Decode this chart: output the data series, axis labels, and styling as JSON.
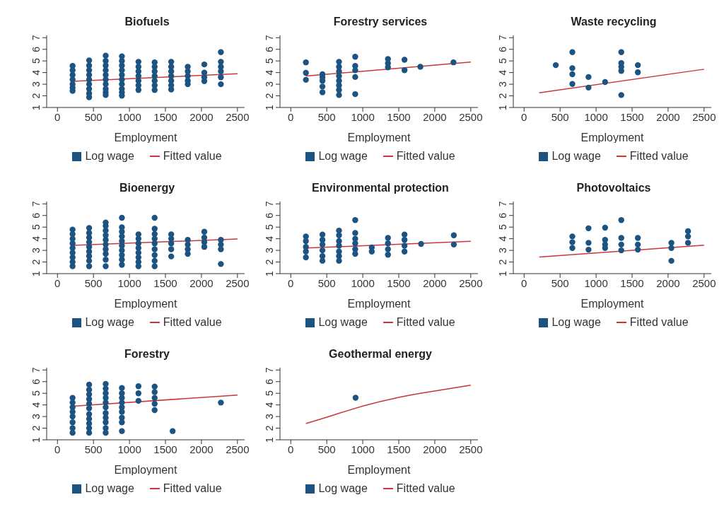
{
  "chart_data": [
    {
      "type": "scatter",
      "title": "Biofuels",
      "xlabel": "Employment",
      "xlim": [
        -150,
        2600
      ],
      "xticks": [
        0,
        500,
        1000,
        1500,
        2000,
        2500
      ],
      "ylim": [
        1,
        7.2
      ],
      "yticks": [
        1,
        2,
        3,
        4,
        5,
        6,
        7
      ],
      "legend": "bottom",
      "series": [
        {
          "name": "Log wage",
          "marker": "circle",
          "color": "#1d5380",
          "x": [
            210,
            210,
            210,
            210,
            210,
            210,
            210,
            440,
            440,
            440,
            440,
            440,
            440,
            440,
            440,
            440,
            670,
            670,
            670,
            670,
            670,
            670,
            670,
            670,
            670,
            670,
            895,
            895,
            895,
            895,
            895,
            895,
            895,
            895,
            895,
            895,
            1125,
            1125,
            1125,
            1125,
            1125,
            1125,
            1125,
            1350,
            1350,
            1350,
            1350,
            1350,
            1350,
            1350,
            1580,
            1580,
            1580,
            1580,
            1580,
            1580,
            1580,
            1810,
            1810,
            1810,
            1810,
            1810,
            2040,
            2040,
            2040,
            2040,
            2270,
            2270,
            2270,
            2270,
            2270,
            2270
          ],
          "values": [
            4.57,
            4.2,
            3.8,
            3.4,
            3.0,
            2.7,
            2.43,
            5.05,
            4.6,
            4.2,
            3.8,
            3.4,
            3.0,
            2.6,
            2.2,
            1.88,
            5.45,
            5.0,
            4.6,
            4.2,
            3.8,
            3.4,
            3.0,
            2.6,
            2.3,
            2.07,
            5.4,
            5.0,
            4.6,
            4.2,
            3.8,
            3.4,
            3.0,
            2.6,
            2.3,
            2.02,
            4.93,
            4.5,
            4.1,
            3.7,
            3.3,
            2.9,
            2.5,
            4.88,
            4.5,
            4.1,
            3.7,
            3.3,
            2.9,
            2.5,
            4.93,
            4.5,
            4.1,
            3.7,
            3.3,
            2.9,
            2.55,
            4.5,
            4.1,
            3.7,
            3.3,
            3.0,
            4.7,
            4.0,
            3.6,
            3.26,
            5.76,
            4.93,
            4.5,
            4.1,
            3.6,
            3.0
          ]
        },
        {
          "name": "Fitted value",
          "type": "line",
          "marker": "none",
          "color": "#c9373a",
          "x": [
            210,
            2500
          ],
          "values": [
            3.25,
            3.9
          ]
        }
      ]
    },
    {
      "type": "scatter",
      "title": "Forestry services",
      "xlabel": "Employment",
      "xlim": [
        -150,
        2600
      ],
      "xticks": [
        0,
        500,
        1000,
        1500,
        2000,
        2500
      ],
      "ylim": [
        1,
        7.2
      ],
      "yticks": [
        1,
        2,
        3,
        4,
        5,
        6,
        7
      ],
      "legend": "bottom",
      "series": [
        {
          "name": "Log wage",
          "marker": "circle",
          "color": "#1d5380",
          "x": [
            210,
            210,
            210,
            440,
            440,
            440,
            440,
            440,
            670,
            670,
            670,
            670,
            670,
            670,
            670,
            670,
            895,
            895,
            895,
            895,
            895,
            1350,
            1350,
            1350,
            1580,
            1580,
            1800,
            2260
          ],
          "values": [
            4.88,
            3.98,
            3.38,
            3.86,
            3.6,
            3.3,
            2.8,
            2.31,
            4.93,
            4.5,
            4.1,
            3.7,
            3.3,
            2.9,
            2.5,
            2.07,
            5.36,
            4.57,
            4.2,
            3.62,
            2.15,
            5.17,
            4.8,
            4.45,
            5.1,
            4.21,
            4.5,
            4.88
          ]
        },
        {
          "name": "Fitted value",
          "type": "line",
          "marker": "none",
          "color": "#c9373a",
          "x": [
            210,
            2500
          ],
          "values": [
            3.7,
            4.9
          ]
        }
      ]
    },
    {
      "type": "scatter",
      "title": "Waste recycling",
      "xlabel": "Employment",
      "xlim": [
        -150,
        2600
      ],
      "xticks": [
        0,
        500,
        1000,
        1500,
        2000,
        2500
      ],
      "ylim": [
        1,
        7.2
      ],
      "yticks": [
        1,
        2,
        3,
        4,
        5,
        6,
        7
      ],
      "legend": "bottom",
      "series": [
        {
          "name": "Log wage",
          "marker": "circle",
          "color": "#1d5380",
          "x": [
            440,
            670,
            670,
            670,
            670,
            895,
            895,
            1125,
            1350,
            1350,
            1350,
            1350,
            1350,
            1580,
            1580
          ],
          "values": [
            4.64,
            5.76,
            4.38,
            3.86,
            3.02,
            3.62,
            2.71,
            3.19,
            5.76,
            4.81,
            4.5,
            4.14,
            2.07,
            4.64,
            4.02
          ]
        },
        {
          "name": "Fitted value",
          "type": "line",
          "marker": "none",
          "color": "#c9373a",
          "x": [
            210,
            2500
          ],
          "values": [
            2.26,
            4.29
          ]
        }
      ]
    },
    {
      "type": "scatter",
      "title": "Bioenergy",
      "xlabel": "Employment",
      "xlim": [
        -150,
        2600
      ],
      "xticks": [
        0,
        500,
        1000,
        1500,
        2000,
        2500
      ],
      "ylim": [
        1,
        7.2
      ],
      "yticks": [
        1,
        2,
        3,
        4,
        5,
        6,
        7
      ],
      "legend": "bottom",
      "series": [
        {
          "name": "Log wage",
          "marker": "circle",
          "color": "#1d5380",
          "x": [
            210,
            210,
            210,
            210,
            210,
            210,
            210,
            210,
            210,
            440,
            440,
            440,
            440,
            440,
            440,
            440,
            440,
            440,
            670,
            670,
            670,
            670,
            670,
            670,
            670,
            670,
            670,
            670,
            895,
            895,
            895,
            895,
            895,
            895,
            895,
            895,
            895,
            895,
            1125,
            1125,
            1125,
            1125,
            1125,
            1125,
            1125,
            1125,
            1350,
            1350,
            1350,
            1350,
            1350,
            1350,
            1350,
            1350,
            1350,
            1580,
            1580,
            1580,
            1580,
            1580,
            1810,
            1810,
            1810,
            1810,
            2040,
            2040,
            2040,
            2040,
            2270,
            2270,
            2270,
            2270
          ],
          "values": [
            4.79,
            4.4,
            4.0,
            3.6,
            3.2,
            2.8,
            2.4,
            2.0,
            1.64,
            4.93,
            4.5,
            4.1,
            3.7,
            3.3,
            2.9,
            2.5,
            2.1,
            1.64,
            5.4,
            5.1,
            4.7,
            4.3,
            3.9,
            3.5,
            3.1,
            2.7,
            2.2,
            1.64,
            5.8,
            4.98,
            4.6,
            4.2,
            3.8,
            3.4,
            3.0,
            2.6,
            2.2,
            1.76,
            4.38,
            4.0,
            3.6,
            3.2,
            2.8,
            2.4,
            2.0,
            1.64,
            5.8,
            4.86,
            4.4,
            4.0,
            3.6,
            3.1,
            2.6,
            2.1,
            1.64,
            4.38,
            4.0,
            3.6,
            3.1,
            2.48,
            3.9,
            3.5,
            3.1,
            2.7,
            4.6,
            4.1,
            3.7,
            3.3,
            3.9,
            3.5,
            3.1,
            1.83
          ]
        },
        {
          "name": "Fitted value",
          "type": "line",
          "marker": "none",
          "color": "#c9373a",
          "x": [
            210,
            2500
          ],
          "values": [
            3.43,
            3.98
          ]
        }
      ]
    },
    {
      "type": "scatter",
      "title": "Environmental protection",
      "xlabel": "Employment",
      "xlim": [
        -150,
        2600
      ],
      "xticks": [
        0,
        500,
        1000,
        1500,
        2000,
        2500
      ],
      "ylim": [
        1,
        7.2
      ],
      "yticks": [
        1,
        2,
        3,
        4,
        5,
        6,
        7
      ],
      "legend": "bottom",
      "series": [
        {
          "name": "Log wage",
          "marker": "circle",
          "color": "#1d5380",
          "x": [
            210,
            210,
            210,
            210,
            210,
            440,
            440,
            440,
            440,
            440,
            440,
            670,
            670,
            670,
            670,
            670,
            670,
            670,
            895,
            895,
            895,
            895,
            895,
            895,
            1125,
            1125,
            1350,
            1350,
            1350,
            1350,
            1580,
            1580,
            1580,
            1580,
            1810,
            2265,
            2265
          ],
          "values": [
            4.2,
            3.8,
            3.3,
            2.9,
            2.4,
            4.36,
            3.9,
            3.5,
            3.0,
            2.5,
            2.1,
            4.7,
            4.3,
            3.8,
            3.4,
            2.9,
            2.5,
            2.1,
            5.6,
            4.5,
            4.0,
            3.6,
            3.1,
            2.7,
            3.25,
            2.9,
            4.07,
            3.6,
            3.1,
            2.63,
            4.36,
            3.9,
            3.4,
            2.9,
            3.55,
            4.3,
            3.5
          ]
        },
        {
          "name": "Fitted value",
          "type": "line",
          "marker": "none",
          "color": "#c9373a",
          "x": [
            210,
            2500
          ],
          "values": [
            3.2,
            3.78
          ]
        }
      ]
    },
    {
      "type": "scatter",
      "title": "Photovoltaics",
      "xlabel": "Employment",
      "xlim": [
        -150,
        2600
      ],
      "xticks": [
        0,
        500,
        1000,
        1500,
        2000,
        2500
      ],
      "ylim": [
        1,
        7.2
      ],
      "yticks": [
        1,
        2,
        3,
        4,
        5,
        6,
        7
      ],
      "legend": "bottom",
      "series": [
        {
          "name": "Log wage",
          "marker": "circle",
          "color": "#1d5380",
          "x": [
            670,
            670,
            670,
            895,
            895,
            895,
            1125,
            1125,
            1125,
            1125,
            1350,
            1350,
            1350,
            1350,
            1580,
            1580,
            1580,
            2046,
            2046,
            2046,
            2277,
            2277,
            2277
          ],
          "values": [
            4.2,
            3.7,
            3.2,
            4.9,
            3.65,
            3.06,
            4.95,
            3.9,
            3.5,
            3.2,
            5.6,
            4.07,
            3.5,
            3.0,
            4.07,
            3.5,
            3.06,
            3.65,
            3.2,
            2.1,
            4.65,
            4.2,
            3.65
          ]
        },
        {
          "name": "Fitted value",
          "type": "line",
          "marker": "none",
          "color": "#c9373a",
          "x": [
            210,
            2500
          ],
          "values": [
            2.43,
            3.44
          ]
        }
      ]
    },
    {
      "type": "scatter",
      "title": "Forestry",
      "xlabel": "Employment",
      "xlim": [
        -150,
        2600
      ],
      "xticks": [
        0,
        500,
        1000,
        1500,
        2000,
        2500
      ],
      "ylim": [
        1,
        7.2
      ],
      "yticks": [
        1,
        2,
        3,
        4,
        5,
        6,
        7
      ],
      "legend": "bottom",
      "series": [
        {
          "name": "Log wage",
          "marker": "circle",
          "color": "#1d5380",
          "x": [
            210,
            210,
            210,
            210,
            210,
            210,
            210,
            210,
            440,
            440,
            440,
            440,
            440,
            440,
            440,
            440,
            440,
            440,
            440,
            670,
            670,
            670,
            670,
            670,
            670,
            670,
            670,
            670,
            670,
            670,
            895,
            895,
            895,
            895,
            895,
            895,
            895,
            895,
            895,
            1125,
            1125,
            1125,
            1350,
            1350,
            1350,
            1350,
            1350,
            1600,
            2270
          ],
          "values": [
            4.6,
            4.2,
            3.8,
            3.4,
            3.0,
            2.5,
            2.0,
            1.6,
            5.74,
            5.3,
            4.9,
            4.5,
            4.1,
            3.7,
            3.2,
            2.8,
            2.4,
            2.0,
            1.6,
            5.8,
            5.4,
            5.0,
            4.6,
            4.2,
            3.8,
            3.3,
            2.9,
            2.5,
            2.0,
            1.6,
            5.45,
            5.0,
            4.6,
            4.2,
            3.8,
            3.4,
            2.9,
            2.5,
            1.75,
            5.6,
            5.0,
            4.35,
            5.57,
            5.1,
            4.6,
            4.1,
            3.55,
            1.75,
            4.2
          ]
        },
        {
          "name": "Fitted value",
          "type": "line",
          "marker": "none",
          "color": "#c9373a",
          "x": [
            210,
            2500
          ],
          "values": [
            3.88,
            4.85
          ]
        }
      ]
    },
    {
      "type": "scatter",
      "title": "Geothermal energy",
      "xlabel": "Employment",
      "xlim": [
        -150,
        2600
      ],
      "xticks": [
        0,
        500,
        1000,
        1500,
        2000,
        2500
      ],
      "ylim": [
        1,
        7.2
      ],
      "yticks": [
        1,
        2,
        3,
        4,
        5,
        6,
        7
      ],
      "legend": "bottom",
      "series": [
        {
          "name": "Log wage",
          "marker": "circle",
          "color": "#1d5380",
          "x": [
            900
          ],
          "values": [
            4.62
          ]
        },
        {
          "name": "Fitted value",
          "type": "line",
          "marker": "none",
          "color": "#c9373a",
          "x": [
            210,
            500,
            1000,
            1500,
            2000,
            2500
          ],
          "values": [
            2.4,
            2.95,
            3.9,
            4.65,
            5.2,
            5.7
          ]
        }
      ]
    }
  ]
}
